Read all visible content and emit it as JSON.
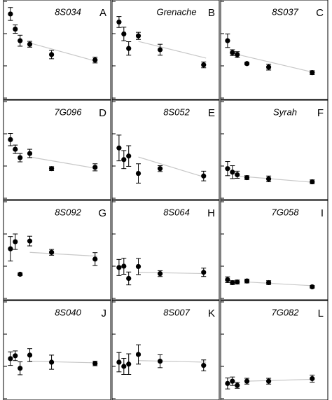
{
  "chart_data": [
    {
      "type": "scatter",
      "title": "8S034",
      "label": "A",
      "x": [
        1,
        2,
        3,
        5,
        9.5,
        18.5
      ],
      "values": [
        2.61,
        2.14,
        1.78,
        1.67,
        1.35,
        1.18
      ],
      "errors": [
        0.2,
        0.13,
        0.17,
        0.09,
        0.13,
        0.09
      ],
      "fit_x": [
        5,
        19
      ],
      "fit_values": [
        1.71,
        1.13
      ],
      "xlim": [
        0,
        21
      ],
      "ylim": [
        0,
        3
      ],
      "yticks": [
        0,
        1,
        2,
        3
      ],
      "color": "#000000",
      "fit_color": "#c8c8c8"
    },
    {
      "type": "scatter",
      "title": "Grenache",
      "label": "B",
      "x": [
        1,
        2,
        3,
        5,
        9.5,
        18.5
      ],
      "values": [
        2.36,
        1.99,
        1.54,
        1.93,
        1.5,
        1.03
      ],
      "errors": [
        0.17,
        0.21,
        0.21,
        0.11,
        0.17,
        0.09
      ],
      "fit_x": [
        5,
        19
      ],
      "fit_values": [
        1.76,
        1.24
      ],
      "xlim": [
        0,
        21
      ],
      "ylim": [
        0,
        3
      ],
      "yticks": [
        0,
        1,
        2,
        3
      ],
      "color": "#000000",
      "fit_color": "#c8c8c8"
    },
    {
      "type": "scatter",
      "title": "8S037",
      "label": "C",
      "x": [
        1,
        2,
        3,
        5,
        9.5,
        18.5
      ],
      "values": [
        1.78,
        1.41,
        1.35,
        1.07,
        0.96,
        0.79
      ],
      "errors": [
        0.21,
        0.09,
        0.09,
        0.04,
        0.09,
        0.06
      ],
      "fit_x": [
        2,
        19
      ],
      "fit_values": [
        1.39,
        0.79
      ],
      "xlim": [
        0,
        21
      ],
      "ylim": [
        0,
        3
      ],
      "yticks": [
        0,
        1,
        2,
        3
      ],
      "color": "#000000",
      "fit_color": "#c8c8c8"
    },
    {
      "type": "scatter",
      "title": "7G096",
      "label": "D",
      "x": [
        1,
        2,
        3,
        5,
        9.5,
        18.5
      ],
      "values": [
        1.82,
        1.52,
        1.26,
        1.39,
        0.92,
        0.96
      ],
      "errors": [
        0.19,
        0.13,
        0.13,
        0.13,
        0.06,
        0.11
      ],
      "fit_x": [
        5,
        19
      ],
      "fit_values": [
        1.28,
        0.92
      ],
      "xlim": [
        0,
        21
      ],
      "ylim": [
        0,
        3
      ],
      "yticks": [
        0,
        1,
        2,
        3
      ],
      "color": "#000000",
      "fit_color": "#c8c8c8"
    },
    {
      "type": "scatter",
      "title": "8S052",
      "label": "E",
      "x": [
        1,
        2,
        3,
        5,
        9.5,
        18.5
      ],
      "values": [
        1.56,
        1.2,
        1.31,
        0.77,
        0.92,
        0.69
      ],
      "errors": [
        0.4,
        0.28,
        0.32,
        0.3,
        0.09,
        0.15
      ],
      "fit_x": [
        5,
        19
      ],
      "fit_values": [
        1.28,
        0.64
      ],
      "xlim": [
        0,
        21
      ],
      "ylim": [
        0,
        3
      ],
      "yticks": [
        0,
        1,
        2,
        3
      ],
      "color": "#000000",
      "fit_color": "#c8c8c8"
    },
    {
      "type": "scatter",
      "title": "Syrah",
      "label": "F",
      "x": [
        1,
        2,
        3,
        5,
        9.5,
        18.5
      ],
      "values": [
        0.92,
        0.81,
        0.73,
        0.64,
        0.6,
        0.51
      ],
      "errors": [
        0.22,
        0.2,
        0.11,
        0.06,
        0.09,
        0.06
      ],
      "fit_x": [
        3,
        19
      ],
      "fit_values": [
        0.69,
        0.49
      ],
      "xlim": [
        0,
        21
      ],
      "ylim": [
        0,
        3
      ],
      "yticks": [
        0,
        1,
        2,
        3
      ],
      "color": "#000000",
      "fit_color": "#c8c8c8"
    },
    {
      "type": "scatter",
      "title": "8S092",
      "label": "G",
      "x": [
        1,
        2,
        3,
        5,
        9.5,
        18.5
      ],
      "values": [
        1.54,
        1.76,
        0.75,
        1.78,
        1.43,
        1.22
      ],
      "errors": [
        0.38,
        0.24,
        0.04,
        0.15,
        0.09,
        0.2
      ],
      "fit_x": [
        5,
        19
      ],
      "fit_values": [
        1.43,
        1.31
      ],
      "xlim": [
        0,
        21
      ],
      "ylim": [
        0,
        3
      ],
      "yticks": [
        0,
        1,
        2,
        3
      ],
      "color": "#000000",
      "fit_color": "#c8c8c8"
    },
    {
      "type": "scatter",
      "title": "8S064",
      "label": "H",
      "x": [
        1,
        2,
        3,
        5,
        9.5,
        18.5
      ],
      "values": [
        0.96,
        1.0,
        0.62,
        0.99,
        0.77,
        0.81
      ],
      "errors": [
        0.25,
        0.25,
        0.2,
        0.25,
        0.09,
        0.13
      ],
      "fit_x": [
        5,
        19
      ],
      "fit_values": [
        0.81,
        0.77
      ],
      "xlim": [
        0,
        21
      ],
      "ylim": [
        0,
        3
      ],
      "yticks": [
        0,
        1,
        2,
        3
      ],
      "color": "#000000",
      "fit_color": "#c8c8c8"
    },
    {
      "type": "scatter",
      "title": "7G058",
      "label": "I",
      "x": [
        1,
        2,
        3,
        5,
        9.5,
        18.5
      ],
      "values": [
        0.58,
        0.49,
        0.51,
        0.54,
        0.49,
        0.36
      ],
      "errors": [
        0.09,
        0.06,
        0.06,
        0.06,
        0.06,
        0.04
      ],
      "fit_x": [
        5,
        19
      ],
      "fit_values": [
        0.51,
        0.39
      ],
      "xlim": [
        0,
        21
      ],
      "ylim": [
        0,
        3
      ],
      "yticks": [
        0,
        1,
        2,
        3
      ],
      "color": "#000000",
      "fit_color": "#c8c8c8"
    },
    {
      "type": "scatter",
      "title": "8S040",
      "label": "J",
      "x": [
        1,
        2,
        3,
        5,
        9.5,
        18.5
      ],
      "values": [
        1.24,
        1.33,
        0.94,
        1.35,
        1.13,
        1.09
      ],
      "errors": [
        0.21,
        0.15,
        0.2,
        0.2,
        0.22,
        0.07
      ],
      "fit_x": [
        5,
        19
      ],
      "fit_values": [
        1.16,
        1.11
      ],
      "xlim": [
        0,
        21
      ],
      "ylim": [
        0,
        3
      ],
      "yticks": [
        0,
        1,
        2,
        3
      ],
      "color": "#000000",
      "fit_color": "#c8c8c8"
    },
    {
      "type": "scatter",
      "title": "8S007",
      "label": "K",
      "x": [
        1,
        2,
        3,
        5,
        9.5,
        18.5
      ],
      "values": [
        1.13,
        1.0,
        1.07,
        1.37,
        1.16,
        1.03
      ],
      "errors": [
        0.3,
        0.25,
        0.32,
        0.3,
        0.2,
        0.17
      ],
      "fit_x": [
        5,
        19
      ],
      "fit_values": [
        1.18,
        1.13
      ],
      "xlim": [
        0,
        21
      ],
      "ylim": [
        0,
        3
      ],
      "yticks": [
        0,
        1,
        2,
        3
      ],
      "color": "#000000",
      "fit_color": "#c8c8c8"
    },
    {
      "type": "scatter",
      "title": "7G082",
      "label": "L",
      "x": [
        1,
        2,
        3,
        5,
        9.5,
        18.5
      ],
      "values": [
        0.47,
        0.54,
        0.41,
        0.54,
        0.54,
        0.62
      ],
      "errors": [
        0.17,
        0.13,
        0.09,
        0.09,
        0.09,
        0.11
      ],
      "fit_x": [
        5,
        19
      ],
      "fit_values": [
        0.54,
        0.6
      ],
      "xlim": [
        0,
        21
      ],
      "ylim": [
        0,
        3
      ],
      "yticks": [
        0,
        1,
        2,
        3
      ],
      "color": "#000000",
      "fit_color": "#c8c8c8"
    }
  ]
}
